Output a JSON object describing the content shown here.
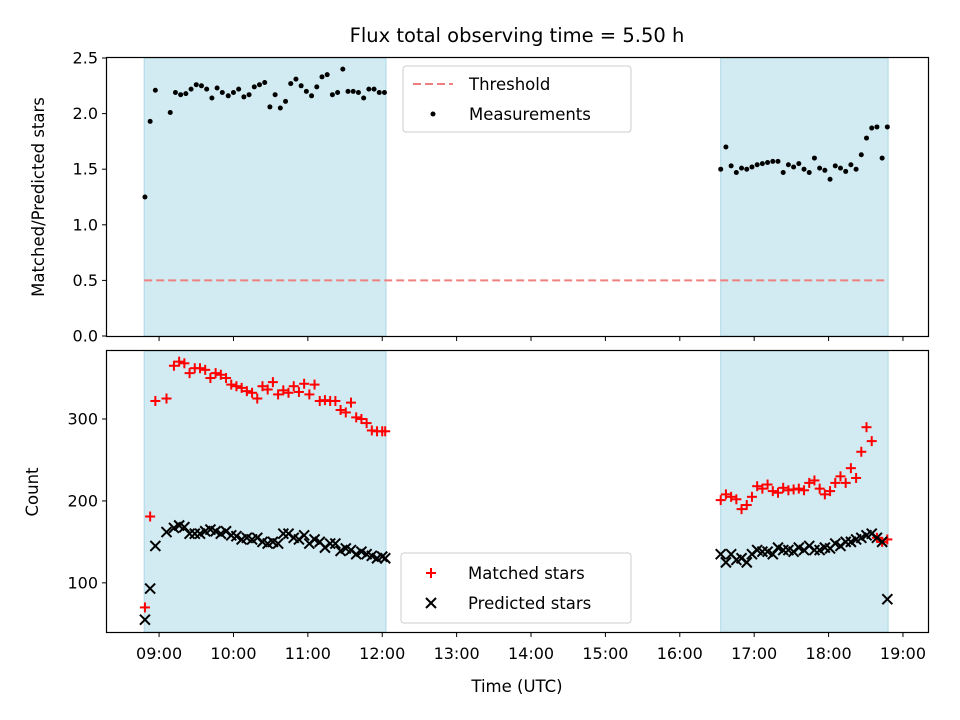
{
  "chart_data": {
    "type": "scatter",
    "title": "Flux total observing time = 5.50 h",
    "xlabel": "Time (UTC)",
    "x_ticks": [
      "09:00",
      "10:00",
      "11:00",
      "12:00",
      "13:00",
      "14:00",
      "15:00",
      "16:00",
      "17:00",
      "18:00",
      "19:00"
    ],
    "x_range_hours": [
      8.3,
      19.35
    ],
    "colors": {
      "shade": "#add8e6",
      "threshold": "#f08080",
      "measurements": "#000000",
      "matched": "#ff0000",
      "predicted": "#000000"
    },
    "observing_windows": [
      {
        "start": 8.8,
        "end": 12.05
      },
      {
        "start": 16.55,
        "end": 18.8
      }
    ],
    "top_panel": {
      "ylabel": "Matched/Predicted stars",
      "ylim": [
        0,
        2.5
      ],
      "y_ticks": [
        "0.0",
        "0.5",
        "1.0",
        "1.5",
        "2.0",
        "2.5"
      ],
      "threshold_value": 0.5,
      "legend": [
        "Threshold",
        "Measurements"
      ],
      "series": {
        "name": "Measurements",
        "x": [
          8.81,
          8.88,
          8.95,
          9.15,
          9.22,
          9.29,
          9.36,
          9.43,
          9.5,
          9.57,
          9.64,
          9.71,
          9.78,
          9.85,
          9.93,
          10.0,
          10.07,
          10.14,
          10.21,
          10.28,
          10.35,
          10.42,
          10.49,
          10.56,
          10.63,
          10.7,
          10.77,
          10.84,
          10.91,
          10.98,
          11.05,
          11.12,
          11.19,
          11.26,
          11.33,
          11.4,
          11.47,
          11.54,
          11.61,
          11.68,
          11.75,
          11.82,
          11.89,
          11.96,
          12.03,
          16.55,
          16.62,
          16.69,
          16.76,
          16.83,
          16.9,
          16.97,
          17.04,
          17.11,
          17.18,
          17.25,
          17.32,
          17.39,
          17.46,
          17.53,
          17.6,
          17.67,
          17.74,
          17.81,
          17.88,
          17.95,
          18.02,
          18.09,
          18.16,
          18.23,
          18.3,
          18.37,
          18.44,
          18.51,
          18.58,
          18.65,
          18.72,
          18.79
        ],
        "y": [
          1.25,
          1.93,
          2.21,
          2.01,
          2.19,
          2.17,
          2.18,
          2.22,
          2.26,
          2.25,
          2.22,
          2.14,
          2.23,
          2.19,
          2.16,
          2.19,
          2.22,
          2.15,
          2.17,
          2.24,
          2.26,
          2.28,
          2.06,
          2.17,
          2.05,
          2.11,
          2.27,
          2.31,
          2.25,
          2.2,
          2.16,
          2.24,
          2.33,
          2.35,
          2.17,
          2.19,
          2.4,
          2.2,
          2.2,
          2.19,
          2.14,
          2.22,
          2.22,
          2.19,
          2.19,
          1.5,
          1.7,
          1.53,
          1.47,
          1.51,
          1.5,
          1.52,
          1.54,
          1.55,
          1.56,
          1.57,
          1.57,
          1.47,
          1.54,
          1.52,
          1.55,
          1.5,
          1.47,
          1.6,
          1.51,
          1.49,
          1.41,
          1.53,
          1.51,
          1.48,
          1.54,
          1.5,
          1.63,
          1.78,
          1.87,
          1.88,
          1.6,
          1.88
        ]
      }
    },
    "bottom_panel": {
      "ylabel": "Count",
      "ylim": [
        40,
        383
      ],
      "y_ticks": [
        100,
        200,
        300
      ],
      "legend": [
        "Matched stars",
        "Predicted stars"
      ],
      "series": [
        {
          "name": "Matched stars",
          "x": [
            8.81,
            8.88,
            8.95,
            9.1,
            9.2,
            9.27,
            9.34,
            9.41,
            9.48,
            9.55,
            9.62,
            9.69,
            9.76,
            9.83,
            9.9,
            9.97,
            10.04,
            10.11,
            10.18,
            10.25,
            10.32,
            10.39,
            10.46,
            10.53,
            10.6,
            10.67,
            10.74,
            10.81,
            10.88,
            10.95,
            11.02,
            11.09,
            11.16,
            11.23,
            11.3,
            11.37,
            11.44,
            11.51,
            11.58,
            11.65,
            11.72,
            11.79,
            11.86,
            11.93,
            12.0,
            12.04,
            16.55,
            16.62,
            16.69,
            16.76,
            16.83,
            16.9,
            16.97,
            17.04,
            17.11,
            17.18,
            17.25,
            17.32,
            17.39,
            17.46,
            17.53,
            17.6,
            17.67,
            17.74,
            17.81,
            17.88,
            17.95,
            18.02,
            18.09,
            18.16,
            18.23,
            18.3,
            18.37,
            18.44,
            18.51,
            18.58,
            18.65,
            18.72,
            18.79
          ],
          "y": [
            70,
            181,
            322,
            325,
            365,
            370,
            368,
            356,
            362,
            362,
            360,
            350,
            356,
            354,
            350,
            342,
            340,
            338,
            334,
            332,
            325,
            340,
            336,
            345,
            330,
            335,
            332,
            340,
            333,
            343,
            330,
            342,
            322,
            323,
            322,
            322,
            311,
            308,
            320,
            302,
            300,
            295,
            286,
            285,
            285,
            285,
            201,
            208,
            205,
            202,
            190,
            195,
            205,
            218,
            215,
            220,
            212,
            210,
            216,
            213,
            214,
            215,
            213,
            222,
            225,
            215,
            208,
            212,
            222,
            230,
            222,
            240,
            228,
            260,
            290,
            273,
            155,
            150,
            153
          ]
        },
        {
          "name": "Predicted stars",
          "x": [
            8.81,
            8.88,
            8.95,
            9.1,
            9.2,
            9.27,
            9.34,
            9.41,
            9.48,
            9.55,
            9.62,
            9.69,
            9.76,
            9.83,
            9.9,
            9.97,
            10.04,
            10.11,
            10.18,
            10.25,
            10.32,
            10.39,
            10.46,
            10.53,
            10.6,
            10.67,
            10.74,
            10.81,
            10.88,
            10.95,
            11.02,
            11.09,
            11.16,
            11.23,
            11.3,
            11.37,
            11.44,
            11.51,
            11.58,
            11.65,
            11.72,
            11.79,
            11.86,
            11.93,
            12.0,
            12.04,
            16.55,
            16.62,
            16.69,
            16.76,
            16.83,
            16.9,
            16.97,
            17.04,
            17.11,
            17.18,
            17.25,
            17.32,
            17.39,
            17.46,
            17.53,
            17.6,
            17.67,
            17.74,
            17.81,
            17.88,
            17.95,
            18.02,
            18.09,
            18.16,
            18.23,
            18.3,
            18.37,
            18.44,
            18.51,
            18.58,
            18.65,
            18.72,
            18.79
          ],
          "y": [
            55,
            93,
            145,
            162,
            167,
            170,
            168,
            160,
            160,
            160,
            163,
            165,
            163,
            160,
            163,
            158,
            157,
            153,
            155,
            153,
            155,
            150,
            148,
            150,
            148,
            160,
            160,
            155,
            153,
            158,
            148,
            153,
            150,
            143,
            148,
            148,
            139,
            142,
            140,
            135,
            138,
            135,
            133,
            130,
            132,
            130,
            135,
            125,
            135,
            128,
            130,
            125,
            135,
            140,
            138,
            138,
            135,
            143,
            140,
            140,
            138,
            143,
            140,
            145,
            140,
            140,
            143,
            142,
            148,
            145,
            150,
            150,
            153,
            155,
            158,
            160,
            155,
            150,
            80
          ]
        }
      ]
    }
  }
}
